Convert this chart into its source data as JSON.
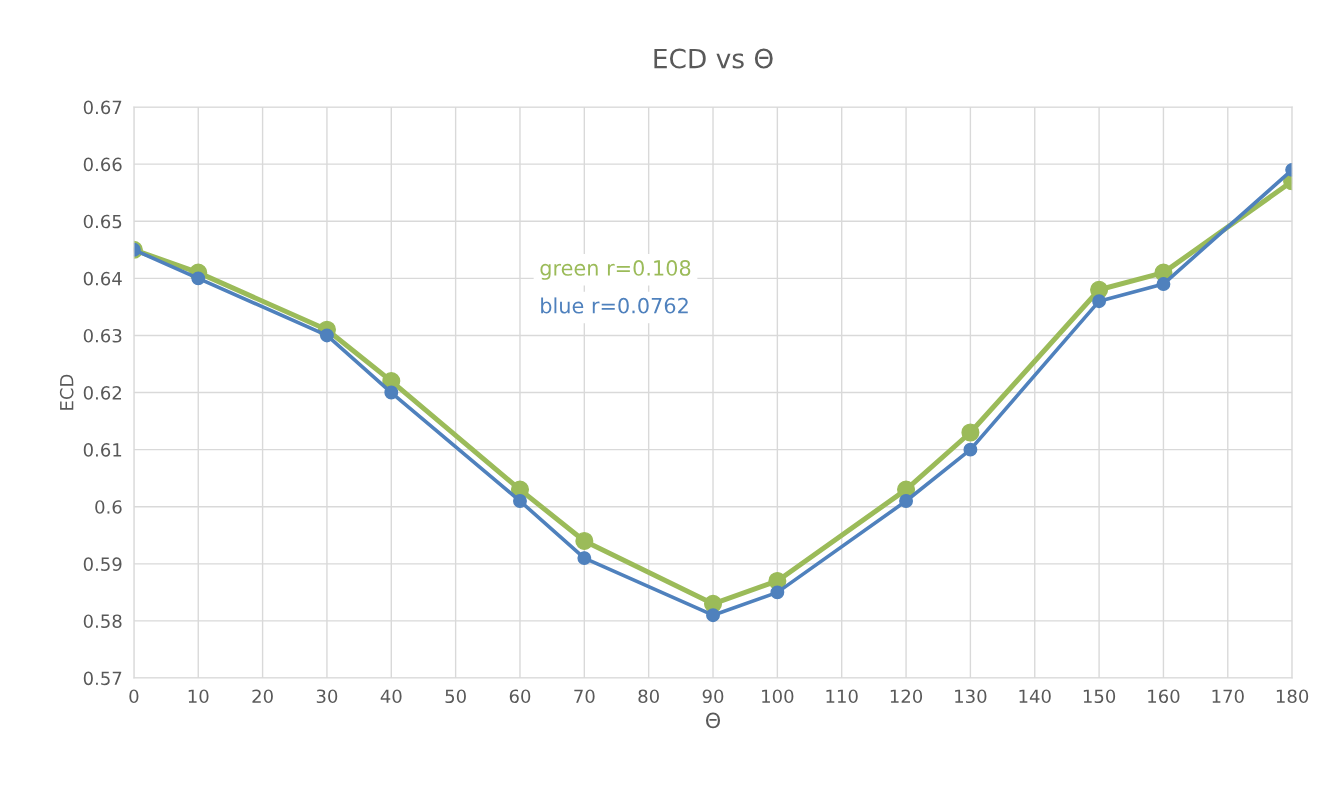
{
  "chart_data": {
    "type": "line",
    "title": "ECD vs Θ",
    "xlabel": "Θ",
    "ylabel": "ECD",
    "x": [
      0,
      10,
      30,
      40,
      60,
      70,
      90,
      100,
      120,
      130,
      150,
      160,
      180
    ],
    "series": [
      {
        "color": "#9bbb59",
        "values": [
          0.645,
          0.641,
          0.631,
          0.622,
          0.603,
          0.594,
          0.583,
          0.587,
          0.603,
          0.613,
          0.638,
          0.641,
          0.657
        ]
      },
      {
        "color": "#4f81bd",
        "values": [
          0.645,
          0.64,
          0.63,
          0.62,
          0.601,
          0.591,
          0.581,
          0.585,
          0.601,
          0.61,
          0.636,
          0.639,
          0.659
        ]
      }
    ],
    "xlim": [
      0,
      180
    ],
    "xticks": [
      0,
      10,
      20,
      30,
      40,
      50,
      60,
      70,
      80,
      90,
      100,
      110,
      120,
      130,
      140,
      150,
      160,
      170,
      180
    ],
    "ylim": [
      0.57,
      0.67
    ],
    "yticks": [
      0.57,
      0.58,
      0.59,
      0.6,
      0.61,
      0.62,
      0.63,
      0.64,
      0.65,
      0.66,
      0.67
    ],
    "grid": true,
    "marker": "circle",
    "line_style": "solid",
    "annotations": [
      "green r=0.108",
      "blue r=0.0762"
    ]
  }
}
